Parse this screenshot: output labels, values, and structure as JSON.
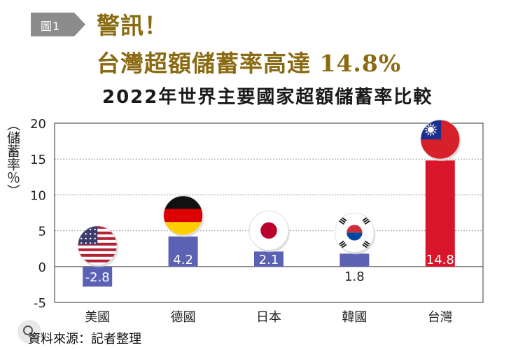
{
  "figure_badge": "圖1",
  "headline": {
    "line1": "警訊！",
    "line2": "台灣超額儲蓄率高達 14.8%"
  },
  "source_note": "資料來源：記者整理",
  "colors": {
    "badge_bg": "#8c8c8c",
    "headline": "#8a6a12",
    "bar_default": "#5b62b4",
    "bar_highlight": "#d9152b",
    "gridline": "#9a9a9a"
  },
  "chart_data": {
    "type": "bar",
    "title": "2022年世界主要國家超額儲蓄率比較",
    "ylabel": "（儲蓄率％）",
    "xlabel": "",
    "ylim": [
      -5,
      20
    ],
    "yticks": [
      -5,
      0,
      5,
      10,
      15,
      20
    ],
    "grid": true,
    "categories": [
      "美國",
      "德國",
      "日本",
      "韓國",
      "台灣"
    ],
    "values": [
      -2.8,
      4.2,
      2.1,
      1.8,
      14.8
    ],
    "value_labels": [
      "-2.8",
      "4.2",
      "2.1",
      "1.8",
      "14.8"
    ],
    "flags": [
      "usa-flag-icon",
      "germany-flag-icon",
      "japan-flag-icon",
      "south-korea-flag-icon",
      "taiwan-flag-icon"
    ],
    "highlight_category": "台灣"
  }
}
